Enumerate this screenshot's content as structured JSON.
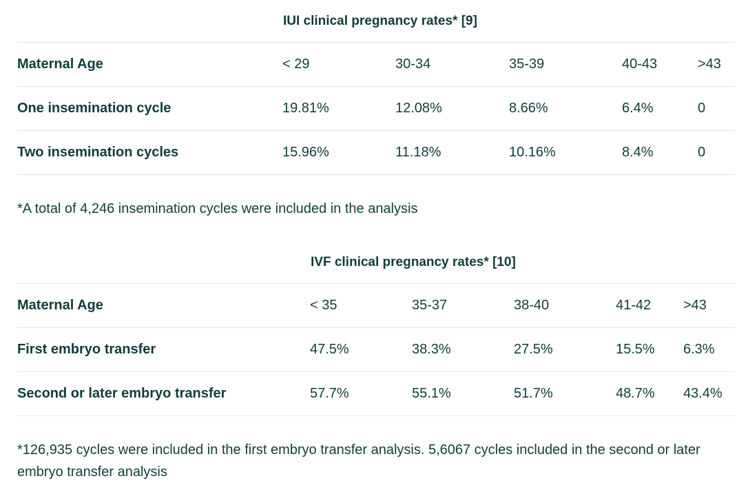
{
  "iui": {
    "caption": "IUI clinical pregnancy rates* [9]",
    "header": {
      "label": "Maternal Age",
      "cols": [
        "< 29",
        "30-34",
        "35-39",
        "40-43",
        ">43"
      ]
    },
    "rows": [
      {
        "label": "One insemination cycle",
        "values": [
          "19.81%",
          "12.08%",
          "8.66%",
          "6.4%",
          "0"
        ]
      },
      {
        "label": "Two insemination cycles",
        "values": [
          "15.96%",
          "11.18%",
          "10.16%",
          "8.4%",
          "0"
        ]
      }
    ],
    "note": "*A total of 4,246 insemination cycles were included in the analysis"
  },
  "ivf": {
    "caption": "IVF clinical pregnancy rates* [10]",
    "header": {
      "label": "Maternal Age",
      "cols": [
        "< 35",
        "35-37",
        "38-40",
        "41-42",
        ">43"
      ]
    },
    "rows": [
      {
        "label": "First embryo transfer",
        "values": [
          "47.5%",
          "38.3%",
          "27.5%",
          "15.5%",
          "6.3%"
        ]
      },
      {
        "label": "Second or later embryo transfer",
        "values": [
          "57.7%",
          "55.1%",
          "51.7%",
          "48.7%",
          "43.4%"
        ]
      }
    ],
    "note": "*126,935 cycles were included in the first embryo transfer analysis. 5,6067 cycles included in the second or later embryo transfer analysis"
  }
}
